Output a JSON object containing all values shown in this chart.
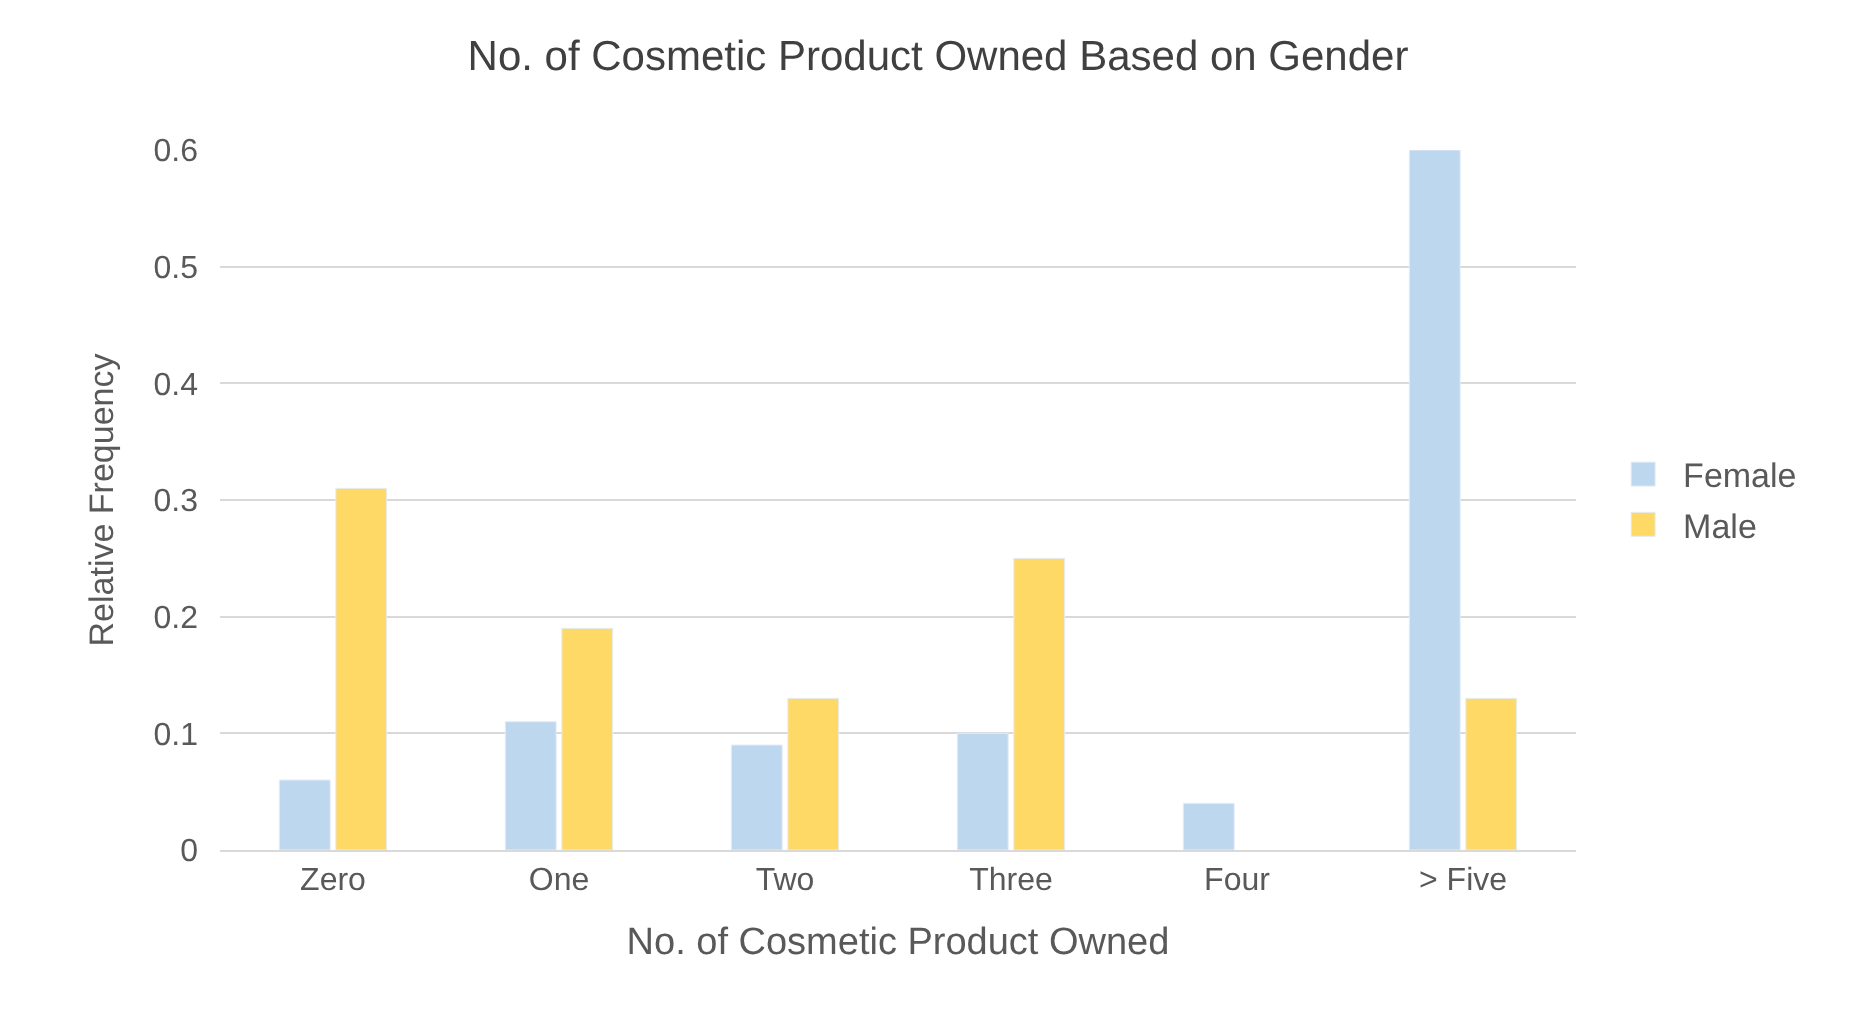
{
  "chart_data": {
    "type": "bar",
    "title": "No. of Cosmetic Product Owned Based on Gender",
    "xlabel": "No. of Cosmetic Product Owned",
    "ylabel": "Relative Frequency",
    "categories": [
      "Zero",
      "One",
      "Two",
      "Three",
      "Four",
      "> Five"
    ],
    "series": [
      {
        "name": "Female",
        "color": "#bdd7ee",
        "values": [
          0.06,
          0.11,
          0.09,
          0.1,
          0.04,
          0.6
        ]
      },
      {
        "name": "Male",
        "color": "#ffd966",
        "values": [
          0.31,
          0.19,
          0.13,
          0.25,
          null,
          0.13
        ]
      }
    ],
    "ylim": [
      0,
      0.6
    ],
    "yticks": [
      {
        "value": 0,
        "label": "0"
      },
      0.1,
      0.2,
      0.3,
      0.4,
      0.5,
      0.6
    ],
    "grid": "y",
    "legend": "right"
  }
}
